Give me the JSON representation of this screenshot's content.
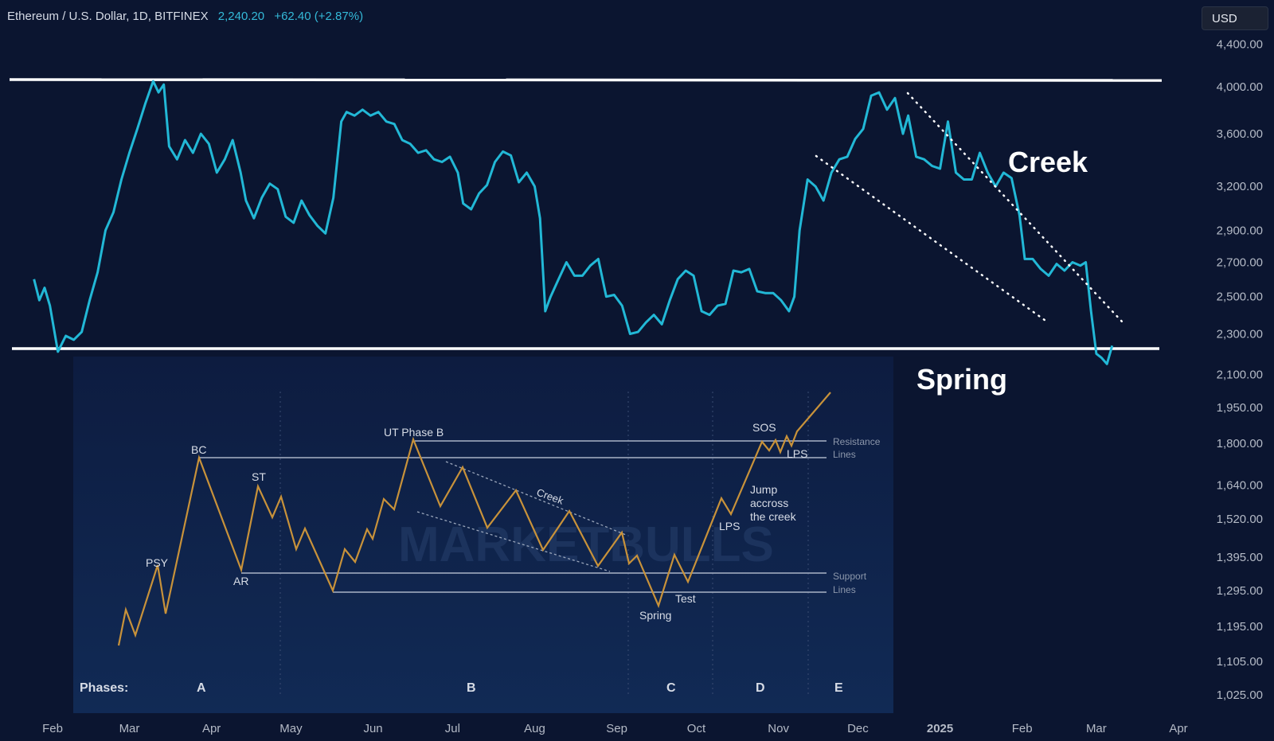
{
  "header": {
    "symbol": "Ethereum / U.S. Dollar, 1D, BITFINEX",
    "price": "2,240.20",
    "change": "+62.40 (+2.87%)"
  },
  "currency_button": {
    "label": "USD"
  },
  "colors": {
    "background": "#0b1530",
    "price_line": "#22b8d6",
    "level_lines": "#ffffff",
    "inset_bg": "#0f2247",
    "schematic_line": "#c8923a"
  },
  "chart_data": [
    {
      "type": "line",
      "y_scale": "log",
      "y_ticks": [
        "4,400.00",
        "4,000.00",
        "3,600.00",
        "3,200.00",
        "2,900.00",
        "2,700.00",
        "2,500.00",
        "2,300.00",
        "2,100.00",
        "1,950.00",
        "1,800.00",
        "1,640.00",
        "1,520.00",
        "1,395.00",
        "1,295.00",
        "1,195.00",
        "1,105.00",
        "1,025.00"
      ],
      "y_tick_values": [
        4400,
        4000,
        3600,
        3200,
        2900,
        2700,
        2500,
        2300,
        2100,
        1950,
        1800,
        1640,
        1520,
        1395,
        1295,
        1195,
        1105,
        1025
      ],
      "x_ticks": [
        "Feb",
        "Mar",
        "Apr",
        "May",
        "Jun",
        "Jul",
        "Aug",
        "Sep",
        "Oct",
        "Nov",
        "Dec",
        "2025",
        "Feb",
        "Mar",
        "Apr"
      ],
      "x_tick_dates": [
        "2024-02-01",
        "2024-03-01",
        "2024-04-01",
        "2024-05-01",
        "2024-06-01",
        "2024-07-01",
        "2024-08-01",
        "2024-09-01",
        "2024-10-01",
        "2024-11-01",
        "2024-12-01",
        "2025-01-01",
        "2025-02-01",
        "2025-03-01",
        "2025-04-01"
      ],
      "x_range": [
        "2024-01-25",
        "2025-04-14"
      ],
      "y_range": [
        980,
        4650
      ],
      "series": [
        {
          "x": [
            "2024-01-25",
            "2024-01-27",
            "2024-01-29",
            "2024-01-31",
            "2024-02-03",
            "2024-02-06",
            "2024-02-09",
            "2024-02-12",
            "2024-02-15",
            "2024-02-18",
            "2024-02-21",
            "2024-02-24",
            "2024-02-27",
            "2024-03-01",
            "2024-03-04",
            "2024-03-07",
            "2024-03-10",
            "2024-03-12",
            "2024-03-14",
            "2024-03-16",
            "2024-03-19",
            "2024-03-22",
            "2024-03-25",
            "2024-03-28",
            "2024-03-31",
            "2024-04-03",
            "2024-04-06",
            "2024-04-09",
            "2024-04-12",
            "2024-04-14",
            "2024-04-17",
            "2024-04-20",
            "2024-04-23",
            "2024-04-26",
            "2024-04-29",
            "2024-05-02",
            "2024-05-05",
            "2024-05-08",
            "2024-05-11",
            "2024-05-14",
            "2024-05-17",
            "2024-05-20",
            "2024-05-22",
            "2024-05-25",
            "2024-05-28",
            "2024-05-31",
            "2024-06-03",
            "2024-06-06",
            "2024-06-09",
            "2024-06-12",
            "2024-06-15",
            "2024-06-18",
            "2024-06-21",
            "2024-06-24",
            "2024-06-27",
            "2024-06-30",
            "2024-07-03",
            "2024-07-05",
            "2024-07-08",
            "2024-07-11",
            "2024-07-14",
            "2024-07-17",
            "2024-07-20",
            "2024-07-23",
            "2024-07-26",
            "2024-07-29",
            "2024-08-01",
            "2024-08-03",
            "2024-08-05",
            "2024-08-07",
            "2024-08-10",
            "2024-08-13",
            "2024-08-16",
            "2024-08-19",
            "2024-08-22",
            "2024-08-25",
            "2024-08-28",
            "2024-08-31",
            "2024-09-03",
            "2024-09-06",
            "2024-09-09",
            "2024-09-12",
            "2024-09-15",
            "2024-09-18",
            "2024-09-21",
            "2024-09-24",
            "2024-09-27",
            "2024-09-30",
            "2024-10-03",
            "2024-10-06",
            "2024-10-09",
            "2024-10-12",
            "2024-10-15",
            "2024-10-18",
            "2024-10-21",
            "2024-10-24",
            "2024-10-27",
            "2024-10-30",
            "2024-11-02",
            "2024-11-05",
            "2024-11-07",
            "2024-11-09",
            "2024-11-12",
            "2024-11-15",
            "2024-11-18",
            "2024-11-21",
            "2024-11-24",
            "2024-11-27",
            "2024-11-30",
            "2024-12-03",
            "2024-12-06",
            "2024-12-09",
            "2024-12-12",
            "2024-12-15",
            "2024-12-18",
            "2024-12-20",
            "2024-12-23",
            "2024-12-26",
            "2024-12-29",
            "2025-01-01",
            "2025-01-04",
            "2025-01-07",
            "2025-01-10",
            "2025-01-13",
            "2025-01-16",
            "2025-01-19",
            "2025-01-22",
            "2025-01-25",
            "2025-01-28",
            "2025-01-31",
            "2025-02-02",
            "2025-02-05",
            "2025-02-08",
            "2025-02-11",
            "2025-02-14",
            "2025-02-17",
            "2025-02-20",
            "2025-02-23",
            "2025-02-25",
            "2025-02-27",
            "2025-03-01",
            "2025-03-03",
            "2025-03-05",
            "2025-03-07"
          ],
          "y": [
            2600,
            2480,
            2550,
            2450,
            2210,
            2290,
            2270,
            2310,
            2480,
            2640,
            2900,
            3020,
            3250,
            3450,
            3640,
            3850,
            4050,
            3950,
            4020,
            3500,
            3400,
            3550,
            3450,
            3600,
            3520,
            3300,
            3400,
            3550,
            3300,
            3100,
            2980,
            3120,
            3220,
            3180,
            2990,
            2950,
            3100,
            3000,
            2930,
            2880,
            3120,
            3700,
            3780,
            3750,
            3800,
            3750,
            3780,
            3700,
            3680,
            3550,
            3520,
            3450,
            3470,
            3400,
            3380,
            3420,
            3300,
            3080,
            3040,
            3150,
            3210,
            3380,
            3460,
            3430,
            3230,
            3300,
            3200,
            2980,
            2420,
            2500,
            2600,
            2700,
            2620,
            2620,
            2680,
            2720,
            2500,
            2510,
            2450,
            2300,
            2310,
            2360,
            2400,
            2350,
            2480,
            2600,
            2650,
            2620,
            2420,
            2400,
            2450,
            2460,
            2650,
            2640,
            2660,
            2530,
            2520,
            2520,
            2480,
            2420,
            2500,
            2900,
            3250,
            3200,
            3100,
            3300,
            3400,
            3420,
            3560,
            3640,
            3920,
            3950,
            3800,
            3900,
            3600,
            3750,
            3420,
            3400,
            3350,
            3330,
            3700,
            3300,
            3250,
            3250,
            3450,
            3300,
            3200,
            3300,
            3260,
            3000,
            2720,
            2720,
            2660,
            2620,
            2690,
            2650,
            2700,
            2680,
            2700,
            2420,
            2200,
            2180,
            2150,
            2240
          ]
        }
      ],
      "annotations": [
        "Creek",
        "Spring"
      ]
    },
    {
      "type": "line",
      "title": "",
      "watermark": "MARKETBULLS",
      "phases_label": "Phases:",
      "phases": [
        "A",
        "B",
        "C",
        "D",
        "E"
      ],
      "labels": [
        "PSY",
        "BC",
        "AR",
        "ST",
        "UT Phase B",
        "Creek",
        "Spring",
        "Test",
        "LPS",
        "Jump accross the creek",
        "SOS",
        "LPS"
      ],
      "level_labels": [
        "Resistance Lines",
        "Support Lines"
      ]
    }
  ],
  "inset": {
    "phases_label": "Phases:",
    "phases": [
      "A",
      "B",
      "C",
      "D",
      "E"
    ],
    "labels": {
      "psy": "PSY",
      "bc": "BC",
      "ar": "AR",
      "st": "ST",
      "ut": "UT Phase B",
      "creek": "Creek",
      "spring": "Spring",
      "test": "Test",
      "lps1": "LPS",
      "jump1": "Jump",
      "jump2": "accross",
      "jump3": "the creek",
      "sos": "SOS",
      "lps2": "LPS",
      "res1": "Resistance",
      "res2": "Lines",
      "sup1": "Support",
      "sup2": "Lines",
      "watermark": "MARKETBULLS"
    }
  },
  "annotations": {
    "creek": "Creek",
    "spring": "Spring"
  }
}
